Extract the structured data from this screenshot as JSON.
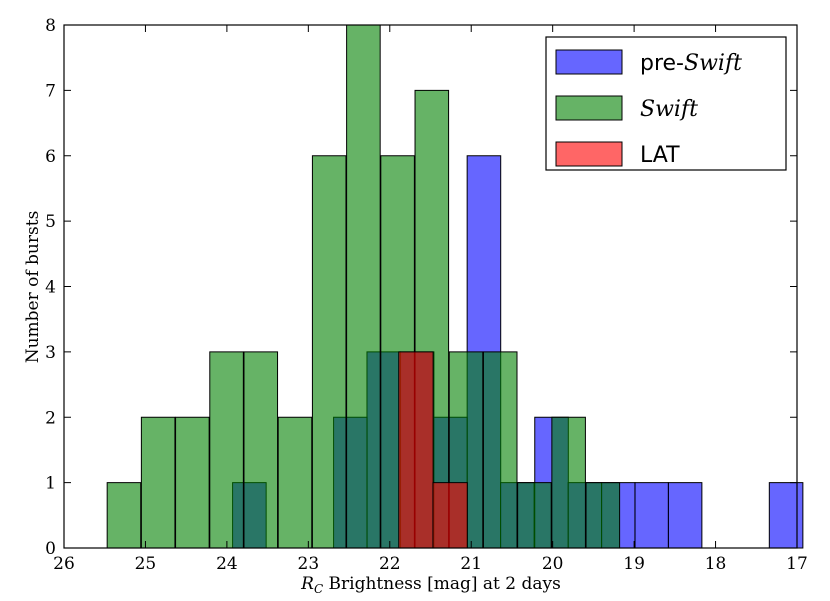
{
  "chart_data": {
    "type": "histogram",
    "xlabel_symbol": "R",
    "xlabel_subscript": "C",
    "xlabel_rest": " Brightness [mag] at 2 days",
    "ylabel": "Number of bursts",
    "xlim": [
      26,
      17
    ],
    "ylim": [
      0,
      8
    ],
    "xticks": [
      26,
      25,
      24,
      23,
      22,
      21,
      20,
      19,
      18,
      17
    ],
    "yticks": [
      0,
      1,
      2,
      3,
      4,
      5,
      6,
      7,
      8
    ],
    "legend": [
      {
        "key": "pre",
        "prefix": "pre-",
        "name": "Swift",
        "italic_name": true,
        "color": "#0000ff"
      },
      {
        "key": "swift",
        "prefix": "",
        "name": "Swift",
        "italic_name": true,
        "color": "#008000"
      },
      {
        "key": "lat",
        "prefix": "",
        "name": "LAT",
        "italic_name": false,
        "color": "#ff0000"
      }
    ],
    "series": [
      {
        "name": "pre-Swift",
        "key": "pre",
        "color": "#0000ff",
        "bin_width": 0.412,
        "bins": [
          {
            "from": 23.93,
            "value": 1
          },
          {
            "from": 22.69,
            "value": 2
          },
          {
            "from": 22.28,
            "value": 3
          },
          {
            "from": 21.87,
            "value": 3
          },
          {
            "from": 21.46,
            "value": 2
          },
          {
            "from": 21.05,
            "value": 6
          },
          {
            "from": 20.64,
            "value": 1
          },
          {
            "from": 20.22,
            "value": 2
          },
          {
            "from": 19.81,
            "value": 1
          },
          {
            "from": 19.4,
            "value": 1
          },
          {
            "from": 18.99,
            "value": 1
          },
          {
            "from": 18.58,
            "value": 1
          },
          {
            "from": 17.34,
            "value": 1
          }
        ]
      },
      {
        "name": "Swift",
        "key": "swift",
        "color": "#008000",
        "bin_width": 0.412,
        "bins": [
          {
            "from": 25.47,
            "value": 1
          },
          {
            "from": 25.05,
            "value": 2
          },
          {
            "from": 24.63,
            "value": 2
          },
          {
            "from": 24.21,
            "value": 3
          },
          {
            "from": 23.79,
            "value": 3
          },
          {
            "from": 23.37,
            "value": 2
          },
          {
            "from": 22.95,
            "value": 6
          },
          {
            "from": 22.53,
            "value": 8
          },
          {
            "from": 22.11,
            "value": 6
          },
          {
            "from": 21.69,
            "value": 7
          },
          {
            "from": 21.27,
            "value": 3
          },
          {
            "from": 20.85,
            "value": 3
          },
          {
            "from": 20.43,
            "value": 1
          },
          {
            "from": 20.01,
            "value": 2
          },
          {
            "from": 19.59,
            "value": 1
          }
        ]
      },
      {
        "name": "LAT",
        "key": "lat",
        "color": "#ff0000",
        "bin_width": 0.422,
        "bins": [
          {
            "from": 21.89,
            "value": 3
          },
          {
            "from": 21.47,
            "value": 1
          }
        ]
      }
    ]
  }
}
